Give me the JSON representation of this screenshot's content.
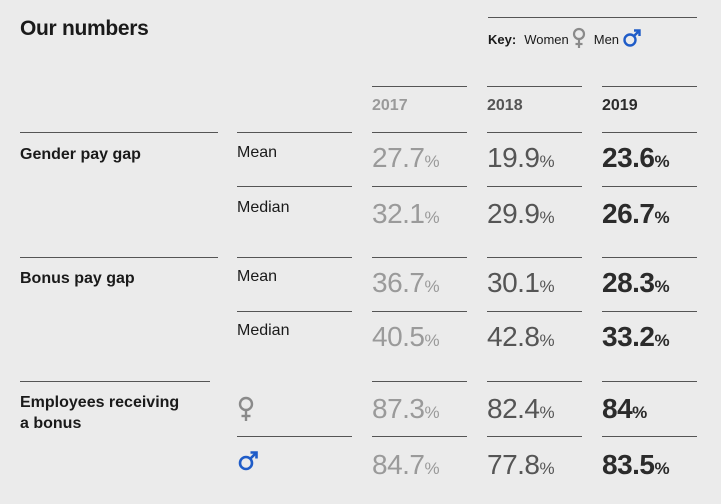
{
  "header": {
    "title": "Our numbers",
    "key_label": "Key:",
    "women_label": "Women",
    "men_label": "Men",
    "colors": {
      "women_symbol": "#8a8a8a",
      "men_symbol": "#1f5cc8"
    }
  },
  "years": [
    "2017",
    "2018",
    "2019"
  ],
  "rows": {
    "gender_gap": {
      "label": "Gender pay gap",
      "mean": {
        "label": "Mean",
        "v2017": "27.7",
        "v2018": "19.9",
        "v2019": "23.6"
      },
      "median": {
        "label": "Median",
        "v2017": "32.1",
        "v2018": "29.9",
        "v2019": "26.7"
      }
    },
    "bonus_gap": {
      "label": "Bonus pay gap",
      "mean": {
        "label": "Mean",
        "v2017": "36.7",
        "v2018": "30.1",
        "v2019": "28.3"
      },
      "median": {
        "label": "Median",
        "v2017": "40.5",
        "v2018": "42.8",
        "v2019": "33.2"
      }
    },
    "bonus_receiving": {
      "label_line1": "Employees receiving",
      "label_line2": "a bonus",
      "women": {
        "v2017": "87.3",
        "v2018": "82.4",
        "v2019": "84"
      },
      "men": {
        "v2017": "84.7",
        "v2018": "77.8",
        "v2019": "83.5"
      }
    }
  },
  "percent_sign": "%"
}
